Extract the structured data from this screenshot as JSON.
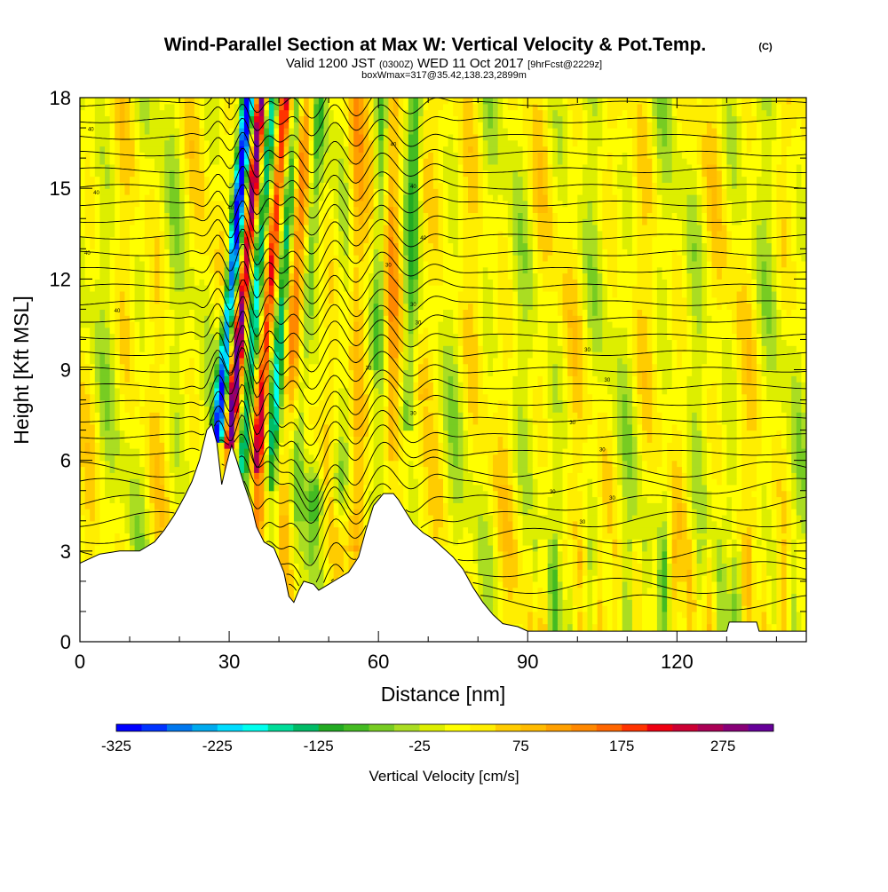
{
  "title": {
    "main": "Wind-Parallel Section at Max W: Vertical Velocity & Pot.Temp.",
    "copyright": "(C)",
    "valid_prefix": "Valid 1200 JST",
    "valid_utc": "(0300Z)",
    "valid_date": "WED 11 Oct 2017",
    "forecast": "[9hrFcst@2229z]",
    "box_info": "boxWmax=317@35.42,138.23,2899m"
  },
  "chart_data": {
    "type": "heatmap",
    "xlabel": "Distance [nm]",
    "ylabel": "Height [Kft MSL]",
    "xlim": [
      0,
      146
    ],
    "ylim": [
      0,
      18
    ],
    "x_ticks": [
      0,
      30,
      60,
      90,
      120
    ],
    "x_tick_labels": [
      "0",
      "30",
      "60",
      "90",
      "120"
    ],
    "y_ticks": [
      0,
      3,
      6,
      9,
      12,
      15,
      18
    ],
    "y_tick_labels": [
      "0",
      "3",
      "6",
      "9",
      "12",
      "15",
      "18"
    ],
    "colorbar": {
      "title": "Vertical Velocity [cm/s]",
      "min": -325,
      "max": 300,
      "step": 25,
      "tick_values": [
        -325,
        -225,
        -125,
        -25,
        75,
        175,
        275
      ],
      "tick_labels": [
        "-325",
        "-225",
        "-125",
        "-25",
        "75",
        "175",
        "275"
      ],
      "colors": [
        "#0000ff",
        "#0033ff",
        "#0077ee",
        "#00aaee",
        "#00ddff",
        "#00ffee",
        "#00dd99",
        "#00bb66",
        "#22aa22",
        "#44bb22",
        "#77cc22",
        "#aadd22",
        "#ddee00",
        "#ffff00",
        "#ffee00",
        "#ffcc00",
        "#ffbb00",
        "#ffa000",
        "#ff8800",
        "#ff6600",
        "#ff3300",
        "#ee0011",
        "#cc0033",
        "#aa0055",
        "#880077",
        "#660099"
      ]
    },
    "terrain": [
      [
        0,
        2.6
      ],
      [
        4,
        2.9
      ],
      [
        8,
        3.0
      ],
      [
        12,
        3.0
      ],
      [
        15,
        3.3
      ],
      [
        17,
        3.7
      ],
      [
        19,
        4.2
      ],
      [
        21,
        4.8
      ],
      [
        22.5,
        5.3
      ],
      [
        24,
        6.0
      ],
      [
        25.5,
        7.0
      ],
      [
        26.5,
        7.2
      ],
      [
        27.5,
        6.6
      ],
      [
        28.5,
        5.2
      ],
      [
        29.5,
        5.9
      ],
      [
        30.5,
        6.5
      ],
      [
        31.5,
        6.0
      ],
      [
        33,
        5.2
      ],
      [
        34.5,
        4.5
      ],
      [
        35.5,
        3.8
      ],
      [
        37,
        3.3
      ],
      [
        39,
        3.1
      ],
      [
        40,
        2.7
      ],
      [
        41,
        2.3
      ],
      [
        42,
        1.5
      ],
      [
        43,
        1.3
      ],
      [
        44,
        1.7
      ],
      [
        45,
        2.0
      ],
      [
        47,
        1.9
      ],
      [
        48,
        1.7
      ],
      [
        50,
        1.9
      ],
      [
        52,
        2.1
      ],
      [
        54,
        2.3
      ],
      [
        56,
        2.8
      ],
      [
        57.5,
        3.7
      ],
      [
        59,
        4.5
      ],
      [
        61,
        4.9
      ],
      [
        63,
        4.9
      ],
      [
        64,
        4.7
      ],
      [
        65.5,
        4.3
      ],
      [
        67,
        3.9
      ],
      [
        69,
        3.6
      ],
      [
        71,
        3.4
      ],
      [
        73,
        3.1
      ],
      [
        75,
        2.8
      ],
      [
        77,
        2.4
      ],
      [
        79,
        1.8
      ],
      [
        81,
        1.3
      ],
      [
        83,
        0.9
      ],
      [
        85,
        0.6
      ],
      [
        88,
        0.5
      ],
      [
        90,
        0.35
      ],
      [
        130,
        0.35
      ],
      [
        130.5,
        0.65
      ],
      [
        136,
        0.65
      ],
      [
        136.5,
        0.35
      ],
      [
        146,
        0.35
      ]
    ],
    "theta_contour_labels": [
      "40",
      "40",
      "40",
      "40",
      "40",
      "40",
      "40",
      "40",
      "30",
      "30",
      "30",
      "30",
      "30",
      "30",
      "30",
      "30",
      "30",
      "30",
      "30",
      "30"
    ]
  }
}
